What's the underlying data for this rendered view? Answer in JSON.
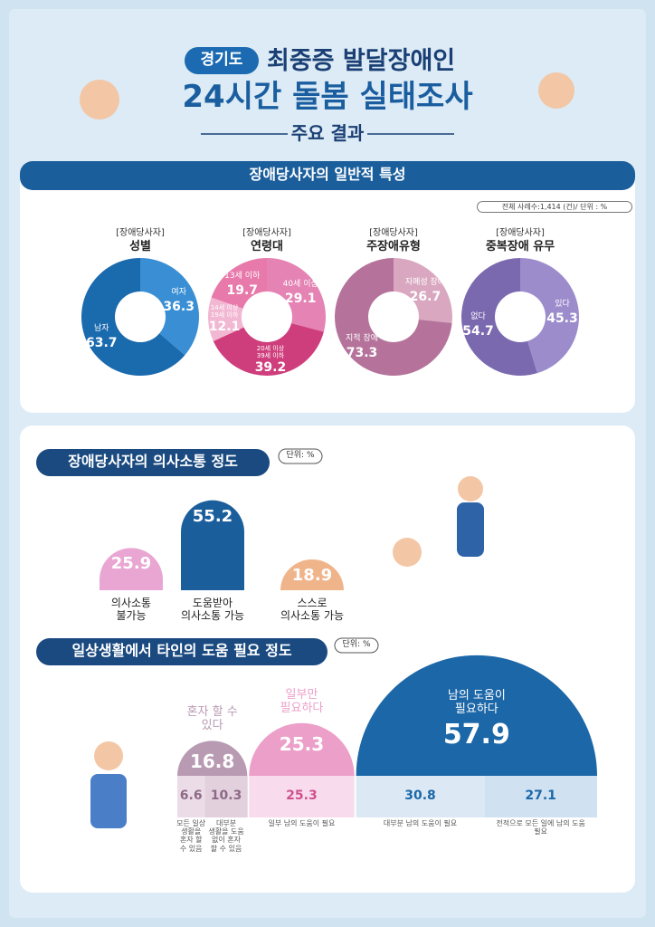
{
  "header": {
    "badge": "경기도",
    "title_line1": "최중증 발달장애인",
    "title_line2": "24시간 돌봄 실태조사",
    "subtitle": "주요 결과"
  },
  "section1": {
    "title": "장애당사자의 일반적 특성",
    "note": "전체 사례수:1,414 (건)/ 단위 : %"
  },
  "chart_data": [
    {
      "type": "donut",
      "label": "[장애당사자]",
      "title": "성별",
      "categories": [
        "여자",
        "남자"
      ],
      "values": [
        36.3,
        63.7
      ],
      "colors": [
        "#3a8fd4",
        "#1a6aae"
      ]
    },
    {
      "type": "donut",
      "label": "[장애당사자]",
      "title": "연령대",
      "categories": [
        "40세 이상",
        "20세 이상 39세 이하",
        "14세 이상 19세 이하",
        "13세 이하"
      ],
      "values": [
        29.1,
        39.2,
        12.1,
        19.7
      ],
      "colors": [
        "#e483b4",
        "#cf3e7c",
        "#f2b7d3",
        "#e77aaa"
      ]
    },
    {
      "type": "donut",
      "label": "[장애당사자]",
      "title": "주장애유형",
      "categories": [
        "자폐성 장애",
        "지적 장애"
      ],
      "values": [
        26.7,
        73.3
      ],
      "colors": [
        "#d9a8c0",
        "#b5739b"
      ]
    },
    {
      "type": "donut",
      "label": "[장애당사자]",
      "title": "중복장애 유무",
      "categories": [
        "있다",
        "없다"
      ],
      "values": [
        45.3,
        54.7
      ],
      "colors": [
        "#9c8ccc",
        "#7b69b0"
      ]
    },
    {
      "type": "bar",
      "title": "장애당사자의 의사소통 정도",
      "unit": "단위: %",
      "categories": [
        "의사소통 불가능",
        "도움받아 의사소통 가능",
        "스스로 의사소통 가능"
      ],
      "values": [
        25.9,
        55.2,
        18.9
      ],
      "colors": [
        "#e9a6d3",
        "#1b5e9c",
        "#f0b48a"
      ]
    },
    {
      "type": "semicircle",
      "title": "일상생활에서 타인의 도움 필요 정도",
      "unit": "단위: %",
      "groups": [
        {
          "name": "혼자 할 수 있다",
          "value": 16.8,
          "color": "#b99ab3",
          "items": [
            {
              "value": 6.6,
              "label": "모든 일상 생활을 혼자 할 수 있음",
              "color": "#ecdce7"
            },
            {
              "value": 10.3,
              "label": "대부분 생활을 도움 없이 혼자 할 수 있음",
              "color": "#e3d0dd"
            }
          ]
        },
        {
          "name": "일부만 필요하다",
          "value": 25.3,
          "color": "#ec9fc9",
          "items": [
            {
              "value": 25.3,
              "label": "일부 남의 도움이 필요",
              "color": "#f8dced"
            }
          ]
        },
        {
          "name": "남의 도움이 필요하다",
          "value": 57.9,
          "color": "#1c67a8",
          "items": [
            {
              "value": 30.8,
              "label": "대부분 남의 도움이 필요",
              "color": "#dce9f5"
            },
            {
              "value": 27.1,
              "label": "전적으로 모든 일에 남의 도움 필요",
              "color": "#d0e2f2"
            }
          ]
        }
      ]
    }
  ]
}
